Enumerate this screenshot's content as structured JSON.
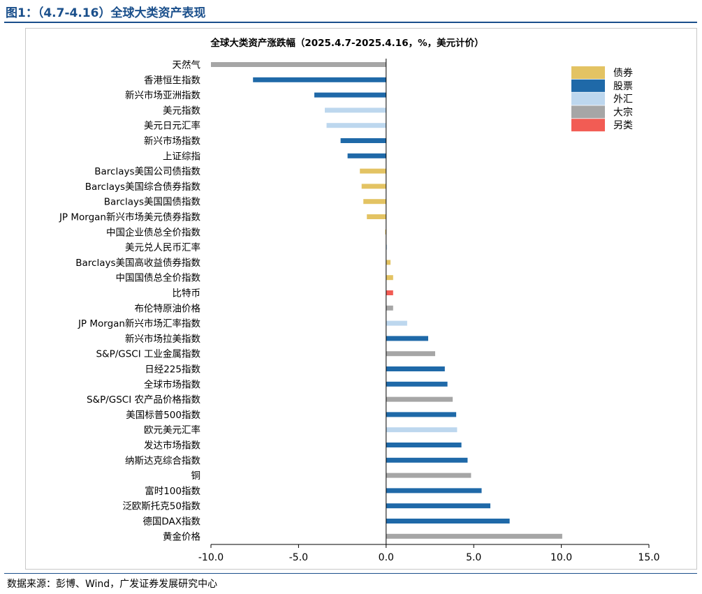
{
  "figure_title": "图1：（4.7-4.16）全球大类资产表现",
  "source": "数据来源：彭博、Wind，广发证券发展研究中心",
  "colors": {
    "债券": "#e3c363",
    "股票": "#1f69a8",
    "外汇": "#bdd7ee",
    "大宗": "#a6a6a6",
    "另类": "#f25c54"
  },
  "chart_data": {
    "type": "bar",
    "orientation": "horizontal",
    "title": "全球大类资产涨跌幅（2025.4.7-2025.4.16，%，美元计价）",
    "xlim": [
      -10,
      15
    ],
    "xticks": [
      "-10.0",
      "-5.0",
      "0.0",
      "5.0",
      "10.0",
      "15.0"
    ],
    "legend": {
      "placement": "top-right",
      "entries": [
        "债券",
        "股票",
        "外汇",
        "大宗",
        "另类"
      ]
    },
    "grid": false,
    "categories": [
      "天然气",
      "香港恒生指数",
      "新兴市场亚洲指数",
      "美元指数",
      "美元日元汇率",
      "新兴市场指数",
      "上证综指",
      "Barclays美国公司债指数",
      "Barclays美国综合债券指数",
      "Barclays美国国债指数",
      "JP Morgan新兴市场美元债券指数",
      "中国企业债总全价指数",
      "美元兑人民币汇率",
      "Barclays美国高收益债券指数",
      "中国国债总全价指数",
      "比特币",
      "布伦特原油价格",
      "JP Morgan新兴市场汇率指数",
      "新兴市场拉美指数",
      "S&P/GSCI 工业金属指数",
      "日经225指数",
      "全球市场指数",
      "S&P/GSCI 农产品价格指数",
      "美国标普500指数",
      "欧元美元汇率",
      "发达市场指数",
      "纳斯达克综合指数",
      "铜",
      "富时100指数",
      "泛欧斯托克50指数",
      "德国DAX指数",
      "黄金价格"
    ],
    "values": [
      -10.0,
      -7.6,
      -4.1,
      -3.5,
      -3.4,
      -2.6,
      -2.2,
      -1.5,
      -1.4,
      -1.3,
      -1.1,
      -0.05,
      0.05,
      0.25,
      0.4,
      0.4,
      0.4,
      1.2,
      2.4,
      2.8,
      3.35,
      3.5,
      3.8,
      4.0,
      4.05,
      4.3,
      4.65,
      4.85,
      5.45,
      5.95,
      7.05,
      10.05
    ],
    "classes": [
      "大宗",
      "股票",
      "股票",
      "外汇",
      "外汇",
      "股票",
      "股票",
      "债券",
      "债券",
      "债券",
      "债券",
      "债券",
      "外汇",
      "债券",
      "债券",
      "另类",
      "大宗",
      "外汇",
      "股票",
      "大宗",
      "股票",
      "股票",
      "大宗",
      "股票",
      "外汇",
      "股票",
      "股票",
      "大宗",
      "股票",
      "股票",
      "股票",
      "大宗"
    ]
  }
}
